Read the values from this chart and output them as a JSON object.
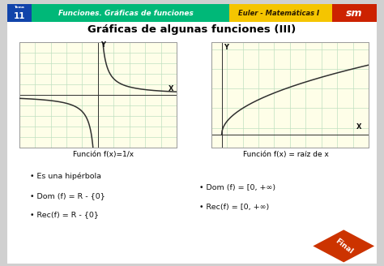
{
  "title": "Gráficas de algunas funciones (III)",
  "header_text": "Funciones. Gráficas de funciones",
  "header_right": "Euler - Matemáticas I",
  "header_num": "11",
  "topic": "Tema",
  "graph1_label": "Función f(x)=1/x",
  "graph2_label": "Función f(x) = raíz de x",
  "bullet1_left": [
    "Es una hipérbola",
    "Dom (f) = R - {0}",
    "Rec(f) = R - {0}"
  ],
  "bullet1_right": [
    "Dom (f) = [0, +∞)",
    "Rec(f) = [0, +∞)"
  ],
  "graph_bg": "#fefee8",
  "grid_color": "#c0e0c0",
  "header_green": "#00b878",
  "header_yellow": "#f5c500",
  "header_red": "#cc2200",
  "header_blue": "#1144aa",
  "curve_color": "#303030",
  "border_color": "#999999",
  "card_bg": "#ffffff",
  "outer_bg": "#d0d0d0",
  "final_color": "#cc3300",
  "axis_label_color": "#111111",
  "text_color": "#111111"
}
